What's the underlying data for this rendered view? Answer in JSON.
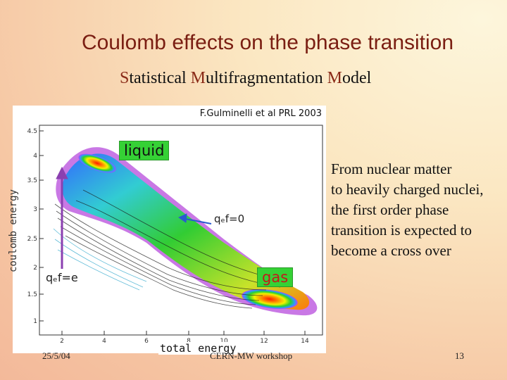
{
  "slide": {
    "title": "Coulomb effects on the phase transition",
    "subtitle_parts": [
      "S",
      "tatistical ",
      "M",
      "ultifragmentation ",
      "M",
      "odel"
    ],
    "credit": "F.Gulminelli et al PRL 2003",
    "ylabel": "coulomb energy",
    "xlabel": "total energy",
    "label_liquid": "liquid",
    "label_gas": "gas",
    "label_q0": "qₑf=0",
    "label_qe": "qₑf=e",
    "y_ticks": [
      "4.5",
      "4",
      "3.5",
      "3",
      "2.5",
      "2",
      "1.5",
      "1"
    ],
    "x_ticks": [
      "2",
      "4",
      "6",
      "8",
      "10",
      "12",
      "14"
    ],
    "side_text_lines": [
      "From nuclear matter",
      "to heavily charged nuclei,",
      "the first order phase",
      "transition is expected to",
      "become a cross over"
    ],
    "footer_date": "25/5/04",
    "footer_workshop": "CERN-MW workshop",
    "footer_page": "13",
    "colors": {
      "title": "#7a1e12",
      "subtitle_initial": "#8a2a17",
      "label_bg": "#35d135",
      "arrow": "#8b3fb0",
      "gas_text": "#c31a1a"
    }
  }
}
